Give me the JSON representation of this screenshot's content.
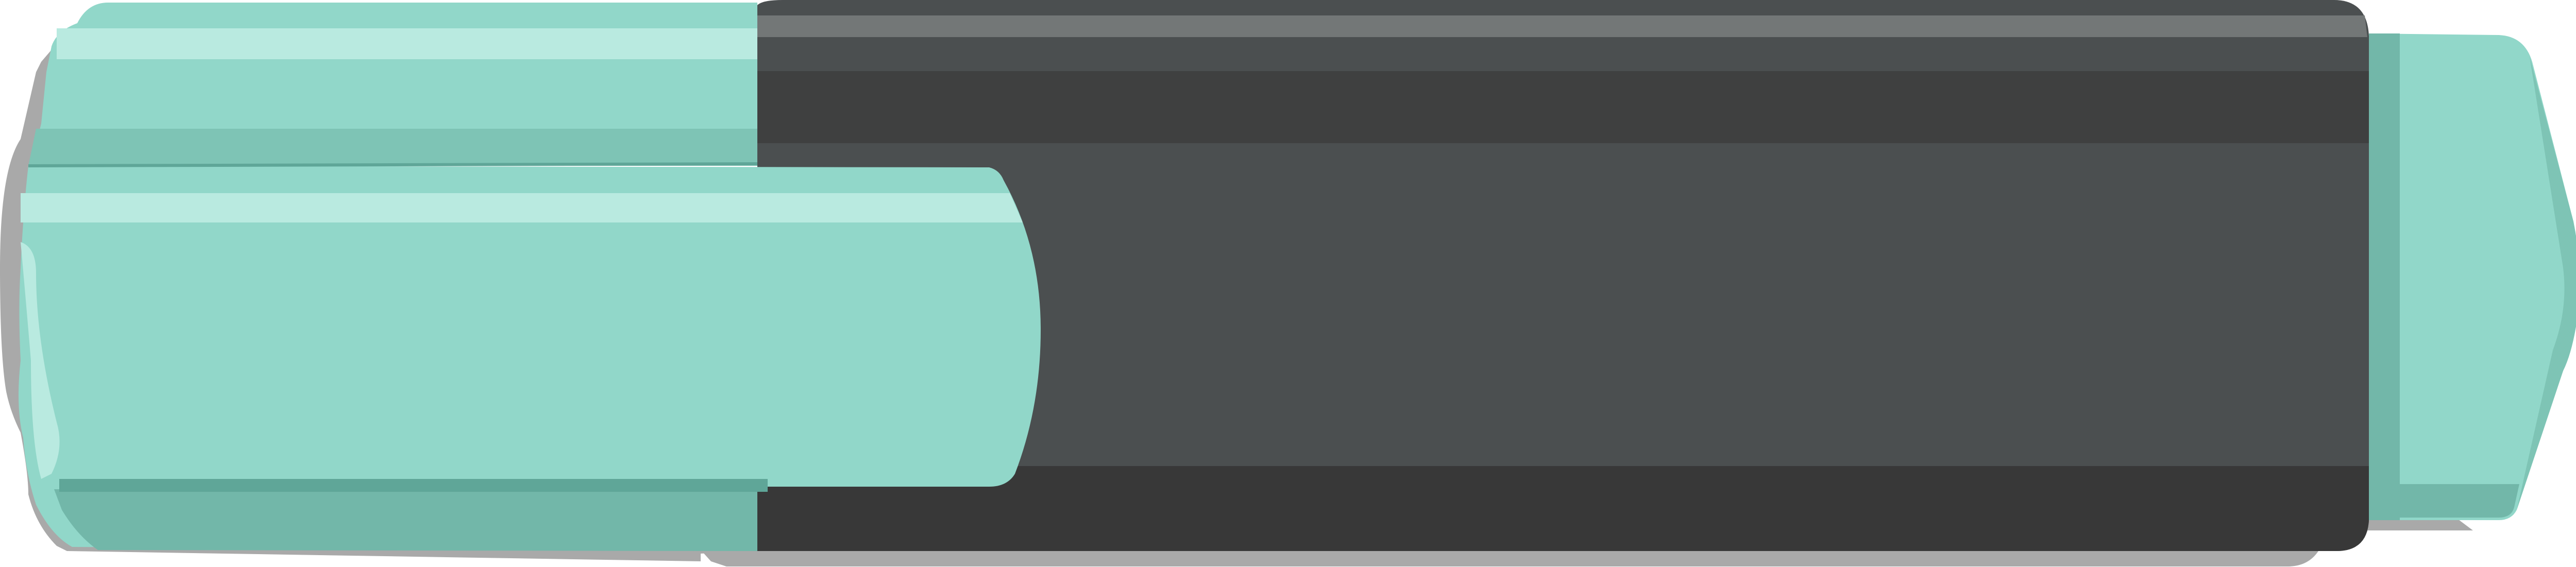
{
  "illustration": {
    "subject": "highlighter-marker",
    "colors": {
      "body_dark": "#4b4f50",
      "body_darker": "#3f4040",
      "body_darkest": "#383838",
      "body_top_band": "#737777",
      "mint": "#91d7c9",
      "mint_light": "#b9eae0",
      "mint_mid": "#7ec4b5",
      "mint_dark": "#72b7a9",
      "mint_stripe": "#5fa698",
      "shadow": "#a9a9a9"
    }
  }
}
